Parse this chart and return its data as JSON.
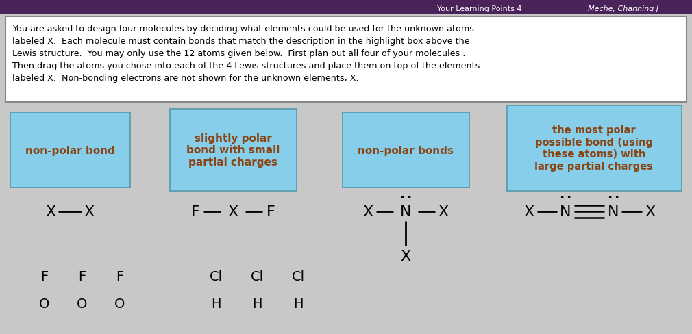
{
  "title_bar": "Meche, Channing J",
  "description": "You are asked to design four molecules by deciding what elements could be used for the unknown atoms\nlabeled X.  Each molecule must contain bonds that match the description in the highlight box above the\nLewis structure.  You may only use the 12 atoms given below.  First plan out all four of your molecules .\nThen drag the atoms you chose into each of the 4 Lewis structures and place them on top of the elements\nlabeled X.  Non-bonding electrons are not shown for the unknown elements, X.",
  "bg_top_color": "#4a235a",
  "bg_main_color": "#c8c8c8",
  "desc_box_color": "#ffffff",
  "desc_text_color": "#000000",
  "highlight_box_color": "#87ceeb",
  "highlight_text_color": "#8B4513",
  "atoms_row1": [
    "F",
    "F",
    "F",
    "Cl",
    "Cl",
    "Cl"
  ],
  "atoms_row2": [
    "O",
    "O",
    "O",
    "H",
    "H",
    "H"
  ]
}
